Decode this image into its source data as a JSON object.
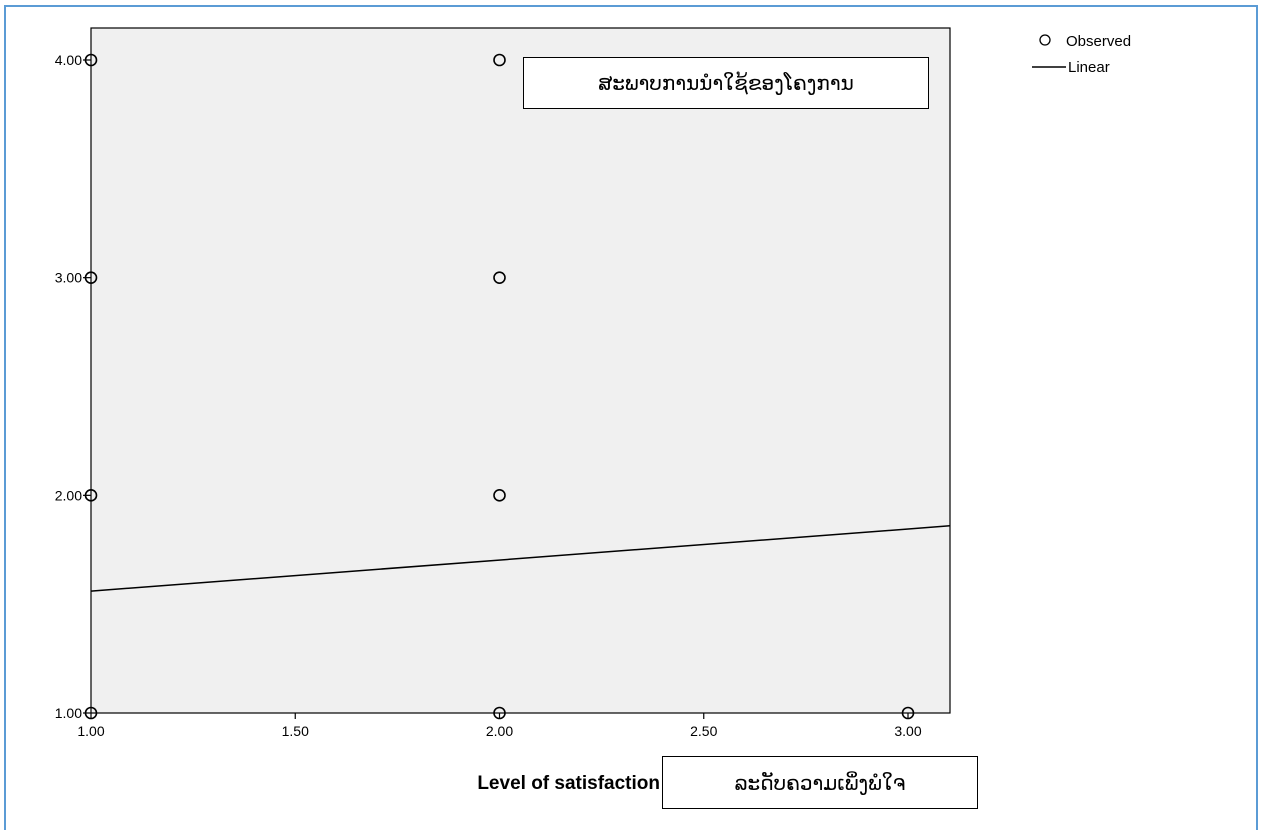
{
  "chart_data": {
    "type": "scatter",
    "xlabel": "Level of satisfaction",
    "ylabel": "",
    "xlim": [
      1.0,
      3.1
    ],
    "ylim": [
      1.0,
      4.0
    ],
    "x_ticks": [
      "1.00",
      "1.50",
      "2.00",
      "2.50",
      "3.00"
    ],
    "x_tick_values": [
      1.0,
      1.5,
      2.0,
      2.5,
      3.0
    ],
    "y_ticks": [
      "1.00",
      "2.00",
      "3.00",
      "4.00"
    ],
    "y_tick_values": [
      1.0,
      2.0,
      3.0,
      4.0
    ],
    "series": [
      {
        "name": "Observed",
        "marker": "open-circle",
        "points": [
          [
            1,
            4
          ],
          [
            1,
            3
          ],
          [
            1,
            2
          ],
          [
            1,
            1
          ],
          [
            2,
            4
          ],
          [
            2,
            3
          ],
          [
            2,
            2
          ],
          [
            2,
            1
          ],
          [
            3,
            1
          ]
        ]
      },
      {
        "name": "Linear",
        "style": "line",
        "x": [
          1.0,
          3.1
        ],
        "y": [
          1.56,
          1.86
        ]
      }
    ],
    "legend": {
      "position": "top-right",
      "entries": [
        "Observed",
        "Linear"
      ]
    },
    "grid": false,
    "plot_background": "#f0f0f0",
    "frame_color": "#5b9bd5"
  },
  "annotations": {
    "top_box": "ສະພາບການນຳໃຊ້ຂອງໂຄງການ",
    "bottom_box": "ລະດັບຄວາມເພິ່ງພໍໃຈ"
  }
}
